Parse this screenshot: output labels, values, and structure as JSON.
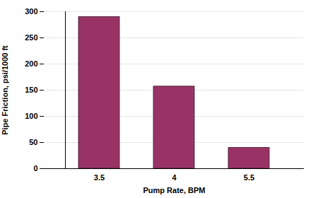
{
  "chart_data": {
    "type": "bar",
    "x_label": "Pump Rate, BPM",
    "y_label": "Pipe Friction, psi/1000 ft",
    "categories": [
      "3.5",
      "4",
      "5.5"
    ],
    "values": [
      290,
      157,
      40
    ],
    "color": "#993366",
    "ylim": [
      0,
      300
    ],
    "yticks": [
      0,
      50,
      100,
      150,
      200,
      250,
      300
    ],
    "grid": true
  }
}
